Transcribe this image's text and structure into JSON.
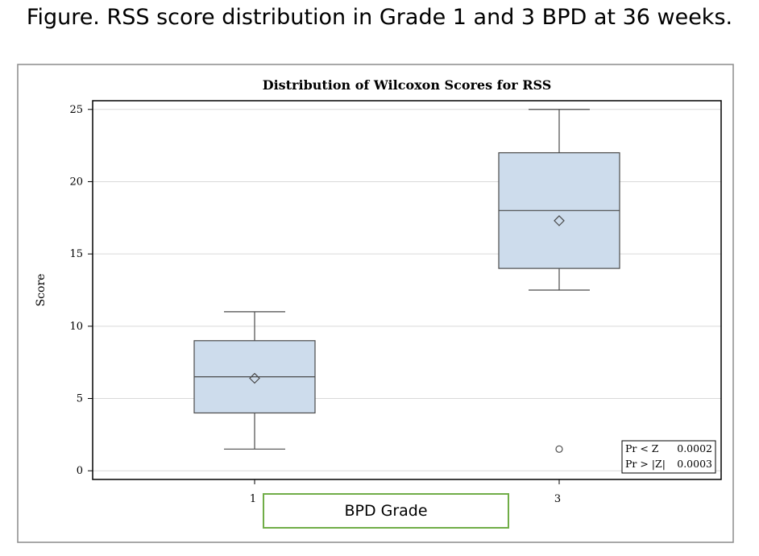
{
  "figure_caption": "Figure. RSS score distribution in Grade 1 and 3 BPD at 36 weeks.",
  "chart_data": {
    "type": "box",
    "title": "Distribution of Wilcoxon Scores for RSS",
    "xlabel": "BPD Grade",
    "ylabel": "Score",
    "ylim": [
      -0.6,
      25.6
    ],
    "yticks": [
      0,
      5,
      10,
      15,
      20,
      25
    ],
    "grid": true,
    "categories": [
      "1",
      "3"
    ],
    "boxes": [
      {
        "category": "1",
        "whisker_low": 1.5,
        "q1": 4,
        "median": 6.5,
        "q3": 9,
        "whisker_high": 11,
        "mean": 6.4,
        "outliers": []
      },
      {
        "category": "3",
        "whisker_low": 12.5,
        "q1": 14,
        "median": 18,
        "q3": 22,
        "whisker_high": 25,
        "mean": 17.3,
        "outliers": [
          1.5
        ]
      }
    ],
    "box_fill": "#cddcec",
    "box_stroke": "#4a4a4a",
    "stats_inset": {
      "placement": "bottom-right",
      "rows": [
        {
          "label": "Pr < Z",
          "value": "0.0002"
        },
        {
          "label": "Pr > |Z|",
          "value": "0.0003"
        }
      ]
    }
  },
  "colors": {
    "xlabel_box_border": "#70ad47"
  }
}
